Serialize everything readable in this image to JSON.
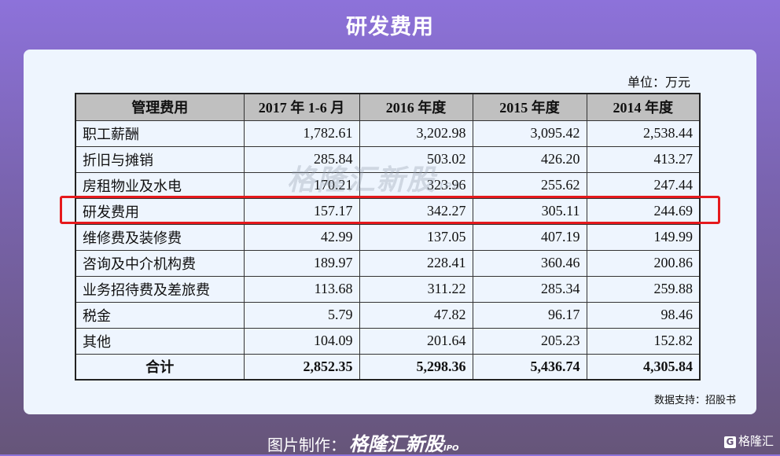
{
  "title": "研发费用",
  "unit": "单位：万元",
  "watermark": {
    "text": "格隆汇新股",
    "sub": "IPO"
  },
  "table": {
    "headers": [
      "管理费用",
      "2017 年 1-6 月",
      "2016 年度",
      "2015 年度",
      "2014 年度"
    ],
    "rows": [
      [
        "职工薪酬",
        "1,782.61",
        "3,202.98",
        "3,095.42",
        "2,538.44"
      ],
      [
        "折旧与摊销",
        "285.84",
        "503.02",
        "426.20",
        "413.27"
      ],
      [
        "房租物业及水电",
        "170.21",
        "323.96",
        "255.62",
        "247.44"
      ],
      [
        "研发费用",
        "157.17",
        "342.27",
        "305.11",
        "244.69"
      ],
      [
        "维修费及装修费",
        "42.99",
        "137.05",
        "407.19",
        "149.99"
      ],
      [
        "咨询及中介机构费",
        "189.97",
        "228.41",
        "360.46",
        "200.86"
      ],
      [
        "业务招待费及差旅费",
        "113.68",
        "311.22",
        "285.34",
        "259.88"
      ],
      [
        "税金",
        "5.79",
        "47.82",
        "96.17",
        "98.46"
      ],
      [
        "其他",
        "104.09",
        "201.64",
        "205.23",
        "152.82"
      ]
    ],
    "total": [
      "合计",
      "2,852.35",
      "5,298.36",
      "5,436.74",
      "4,305.84"
    ],
    "highlighted_row": "研发费用",
    "highlight_color": "#e5191c"
  },
  "source": "数据支持：招股书",
  "footer": {
    "label": "图片制作：",
    "brand": "格隆汇新股",
    "ipo": "IPO"
  },
  "corner_logo": {
    "mark": "G",
    "text": "格隆汇"
  }
}
